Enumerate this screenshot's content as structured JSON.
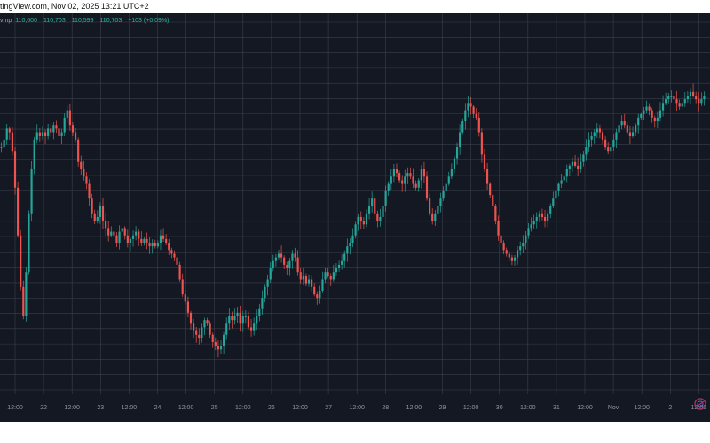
{
  "header": {
    "source_text": "tingView.com, Nov 02, 2025 13:21 UTC+2"
  },
  "legend": {
    "symbol_fragment": "vmp",
    "open": "110,600",
    "high": "110,703",
    "low": "110,599",
    "close": "110,703",
    "change": "+103 (+0.09%)",
    "color": "#2db6a3"
  },
  "colors": {
    "background": "#141822",
    "grid": "#3a3f4c",
    "up": "#26a69a",
    "down": "#ef5350"
  },
  "logo": {
    "icon": "tradingview-logo-icon"
  },
  "chart_data": {
    "type": "line",
    "style": "candlestick",
    "grid": true,
    "y_tick_labels_visible": false,
    "x_tick_labels": [
      "12:00",
      "22",
      "12:00",
      "23",
      "12:00",
      "24",
      "12:00",
      "25",
      "12:00",
      "26",
      "12:00",
      "27",
      "12:00",
      "28",
      "12:00",
      "29",
      "12:00",
      "30",
      "12:00",
      "31",
      "12:00",
      "Nov",
      "12:00",
      "2",
      "12:00"
    ],
    "series": [
      {
        "values": [
          0.66,
          0.68,
          0.71,
          0.7,
          0.65,
          0.55,
          0.42,
          0.28,
          0.2,
          0.32,
          0.48,
          0.6,
          0.68,
          0.7,
          0.69,
          0.7,
          0.69,
          0.71,
          0.7,
          0.72,
          0.71,
          0.69,
          0.7,
          0.74,
          0.76,
          0.72,
          0.7,
          0.68,
          0.62,
          0.6,
          0.58,
          0.56,
          0.52,
          0.48,
          0.46,
          0.47,
          0.5,
          0.46,
          0.44,
          0.42,
          0.43,
          0.42,
          0.4,
          0.43,
          0.44,
          0.42,
          0.4,
          0.41,
          0.42,
          0.43,
          0.41,
          0.4,
          0.41,
          0.4,
          0.39,
          0.4,
          0.39,
          0.4,
          0.42,
          0.41,
          0.4,
          0.38,
          0.37,
          0.36,
          0.34,
          0.3,
          0.26,
          0.24,
          0.21,
          0.18,
          0.16,
          0.15,
          0.14,
          0.17,
          0.19,
          0.18,
          0.15,
          0.13,
          0.12,
          0.11,
          0.12,
          0.15,
          0.18,
          0.2,
          0.19,
          0.2,
          0.21,
          0.18,
          0.2,
          0.2,
          0.17,
          0.16,
          0.18,
          0.2,
          0.22,
          0.25,
          0.28,
          0.3,
          0.33,
          0.35,
          0.36,
          0.37,
          0.36,
          0.34,
          0.33,
          0.35,
          0.37,
          0.36,
          0.32,
          0.3,
          0.31,
          0.29,
          0.3,
          0.28,
          0.26,
          0.25,
          0.27,
          0.3,
          0.32,
          0.31,
          0.3,
          0.32,
          0.33,
          0.34,
          0.35,
          0.37,
          0.39,
          0.4,
          0.42,
          0.45,
          0.47,
          0.46,
          0.45,
          0.48,
          0.5,
          0.52,
          0.48,
          0.46,
          0.47,
          0.5,
          0.54,
          0.56,
          0.58,
          0.6,
          0.59,
          0.57,
          0.56,
          0.58,
          0.59,
          0.58,
          0.56,
          0.55,
          0.57,
          0.6,
          0.58,
          0.52,
          0.48,
          0.46,
          0.48,
          0.5,
          0.52,
          0.54,
          0.56,
          0.58,
          0.6,
          0.63,
          0.66,
          0.7,
          0.73,
          0.76,
          0.78,
          0.77,
          0.75,
          0.74,
          0.7,
          0.64,
          0.6,
          0.56,
          0.53,
          0.5,
          0.46,
          0.42,
          0.4,
          0.38,
          0.37,
          0.36,
          0.35,
          0.36,
          0.38,
          0.39,
          0.4,
          0.42,
          0.44,
          0.45,
          0.46,
          0.47,
          0.48,
          0.47,
          0.46,
          0.48,
          0.5,
          0.52,
          0.54,
          0.56,
          0.57,
          0.58,
          0.6,
          0.61,
          0.62,
          0.61,
          0.6,
          0.62,
          0.64,
          0.66,
          0.68,
          0.69,
          0.7,
          0.71,
          0.7,
          0.68,
          0.66,
          0.65,
          0.66,
          0.68,
          0.7,
          0.72,
          0.73,
          0.72,
          0.7,
          0.69,
          0.7,
          0.72,
          0.74,
          0.75,
          0.76,
          0.77,
          0.76,
          0.74,
          0.73,
          0.74,
          0.76,
          0.78,
          0.79,
          0.8,
          0.8,
          0.79,
          0.78,
          0.77,
          0.78,
          0.79,
          0.8,
          0.81,
          0.8,
          0.79,
          0.78,
          0.79,
          0.8
        ]
      }
    ]
  }
}
